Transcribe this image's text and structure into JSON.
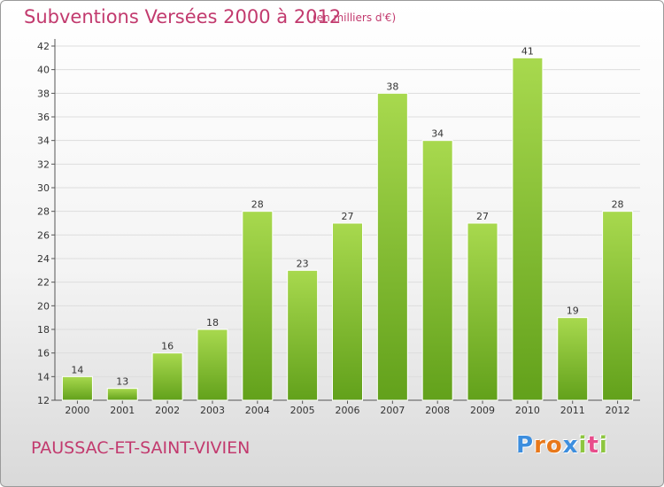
{
  "title": "Subventions Versées 2000 à 2012",
  "unit_note": "(en milliers d'€)",
  "commune": "PAUSSAC-ET-SAINT-VIVIEN",
  "logo": {
    "letters": [
      "P",
      "r",
      "o",
      "x",
      "i",
      "t",
      "i"
    ],
    "colors": [
      "#3d8ede",
      "#e8781a",
      "#e8781a",
      "#3d8ede",
      "#8dc63f",
      "#e84c8b",
      "#8dc63f"
    ]
  },
  "colors": {
    "bar_light": "#a8d94e",
    "bar_dark": "#62a11b",
    "axis_text": "#333333",
    "grid": "#dddddd",
    "title": "#c23a6e"
  },
  "chart_data": {
    "type": "bar",
    "categories": [
      "2000",
      "2001",
      "2002",
      "2003",
      "2004",
      "2005",
      "2006",
      "2007",
      "2008",
      "2009",
      "2010",
      "2011",
      "2012"
    ],
    "values": [
      14,
      13,
      16,
      18,
      28,
      23,
      27,
      38,
      34,
      27,
      41,
      19,
      28
    ],
    "ylim": [
      12,
      42
    ],
    "yticks": [
      12,
      14,
      16,
      18,
      20,
      22,
      24,
      26,
      28,
      30,
      32,
      34,
      36,
      38,
      40,
      42
    ],
    "grid": true,
    "legend": "none"
  }
}
